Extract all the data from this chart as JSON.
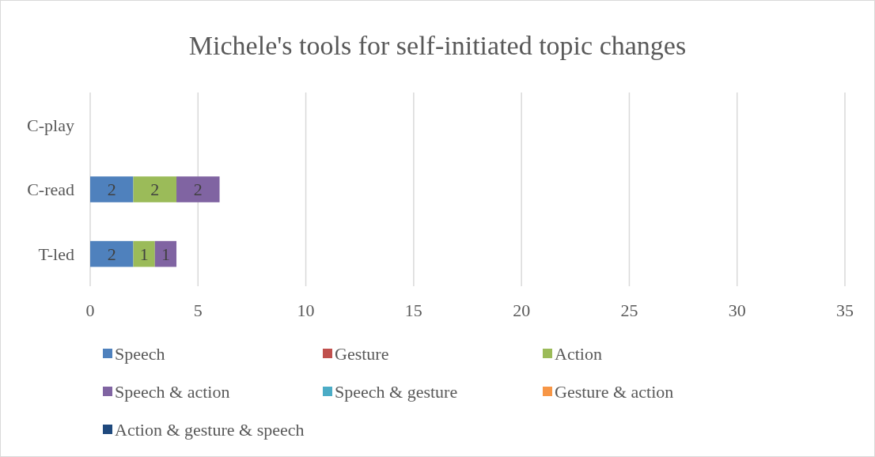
{
  "chart_data": {
    "type": "bar",
    "orientation": "horizontal",
    "stacked": true,
    "title": "Michele's tools for self-initiated topic changes",
    "categories": [
      "C-play",
      "C-read",
      "T-led"
    ],
    "series": [
      {
        "name": "Speech",
        "color": "#4f81bd",
        "values": [
          0,
          2,
          2
        ],
        "value_labels": [
          null,
          "2",
          "2"
        ]
      },
      {
        "name": "Gesture",
        "color": "#c0504d",
        "values": [
          0,
          0,
          0
        ],
        "value_labels": [
          null,
          null,
          null
        ]
      },
      {
        "name": "Action",
        "color": "#9bbb59",
        "values": [
          0,
          2,
          1
        ],
        "value_labels": [
          null,
          "2",
          "1"
        ]
      },
      {
        "name": "Speech & action",
        "color": "#8064a2",
        "values": [
          0,
          2,
          1
        ],
        "value_labels": [
          null,
          "2",
          "1"
        ]
      },
      {
        "name": "Speech & gesture",
        "color": "#4bacc6",
        "values": [
          0,
          0,
          0
        ],
        "value_labels": [
          null,
          null,
          null
        ]
      },
      {
        "name": "Gesture & action",
        "color": "#f79646",
        "values": [
          0,
          0,
          0
        ],
        "value_labels": [
          null,
          null,
          null
        ]
      },
      {
        "name": "Action & gesture & speech",
        "color": "#1f497d",
        "values": [
          0,
          0,
          0
        ],
        "value_labels": [
          null,
          null,
          null
        ]
      }
    ],
    "xlim": [
      0,
      35
    ],
    "xticks": [
      0,
      5,
      10,
      15,
      20,
      25,
      30,
      35
    ],
    "grid": "x",
    "legend": "bottom"
  }
}
